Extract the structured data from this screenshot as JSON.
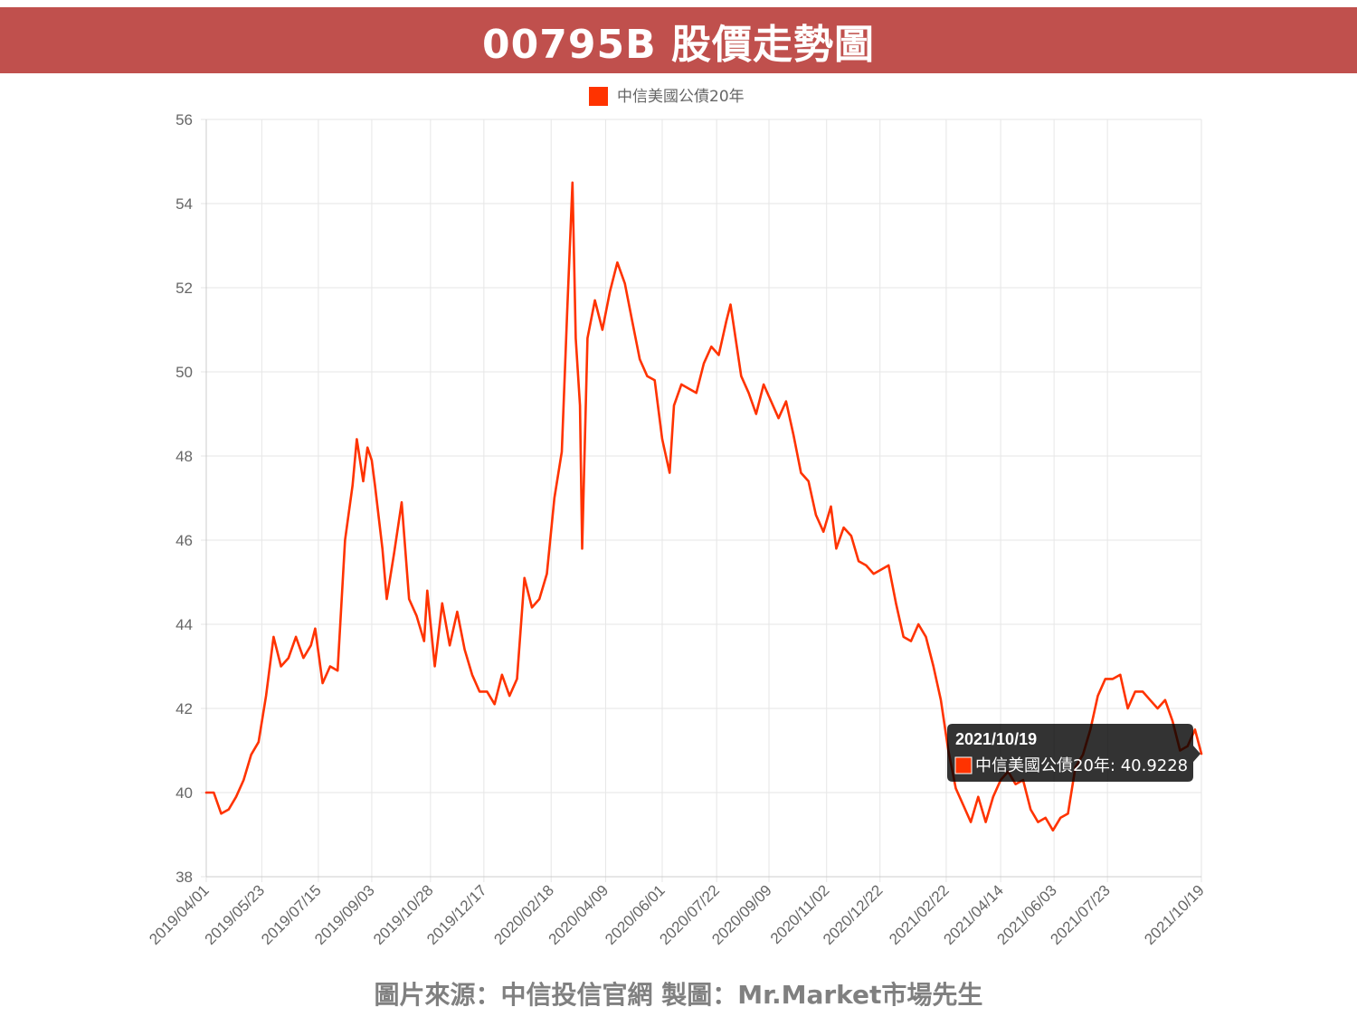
{
  "header": {
    "title": "00795B 股價走勢圖",
    "color": "#c0504d"
  },
  "footer": {
    "source": "圖片來源：中信投信官網  製圖：Mr.Market市場先生"
  },
  "chart_data": {
    "type": "line",
    "legend": {
      "label": "中信美國公債20年",
      "color": "#ff3300",
      "position": "top"
    },
    "x_tick_labels": [
      "2019/04/01",
      "2019/05/23",
      "2019/07/15",
      "2019/09/03",
      "2019/10/28",
      "2019/12/17",
      "2020/02/18",
      "2020/04/09",
      "2020/06/01",
      "2020/07/22",
      "2020/09/09",
      "2020/11/02",
      "2020/12/22",
      "2021/02/22",
      "2021/04/14",
      "2021/06/03",
      "2021/07/23",
      "2021/10/19"
    ],
    "y_ticks": [
      38,
      40,
      42,
      44,
      46,
      48,
      50,
      52,
      54,
      56
    ],
    "ylim": [
      38,
      56
    ],
    "xlim": [
      "2019/04/01",
      "2021/10/19"
    ],
    "grid": true,
    "series": [
      {
        "name": "中信美國公債20年",
        "color": "#ff3300",
        "points": [
          [
            "2019/04/01",
            40.0
          ],
          [
            "2019/04/08",
            40.0
          ],
          [
            "2019/04/15",
            39.5
          ],
          [
            "2019/04/22",
            39.6
          ],
          [
            "2019/04/29",
            39.9
          ],
          [
            "2019/05/06",
            40.3
          ],
          [
            "2019/05/13",
            40.9
          ],
          [
            "2019/05/20",
            41.2
          ],
          [
            "2019/05/27",
            42.3
          ],
          [
            "2019/06/03",
            43.7
          ],
          [
            "2019/06/10",
            43.0
          ],
          [
            "2019/06/17",
            43.2
          ],
          [
            "2019/06/24",
            43.7
          ],
          [
            "2019/07/01",
            43.2
          ],
          [
            "2019/07/08",
            43.5
          ],
          [
            "2019/07/12",
            43.9
          ],
          [
            "2019/07/19",
            42.6
          ],
          [
            "2019/07/26",
            43.0
          ],
          [
            "2019/08/02",
            42.9
          ],
          [
            "2019/08/09",
            46.0
          ],
          [
            "2019/08/16",
            47.3
          ],
          [
            "2019/08/20",
            48.4
          ],
          [
            "2019/08/26",
            47.4
          ],
          [
            "2019/08/30",
            48.2
          ],
          [
            "2019/09/03",
            47.9
          ],
          [
            "2019/09/06",
            47.3
          ],
          [
            "2019/09/13",
            45.8
          ],
          [
            "2019/09/17",
            44.6
          ],
          [
            "2019/09/24",
            45.7
          ],
          [
            "2019/10/01",
            46.9
          ],
          [
            "2019/10/08",
            44.6
          ],
          [
            "2019/10/15",
            44.2
          ],
          [
            "2019/10/22",
            43.6
          ],
          [
            "2019/10/25",
            44.8
          ],
          [
            "2019/11/01",
            43.0
          ],
          [
            "2019/11/08",
            44.5
          ],
          [
            "2019/11/15",
            43.5
          ],
          [
            "2019/11/22",
            44.3
          ],
          [
            "2019/11/29",
            43.4
          ],
          [
            "2019/12/06",
            42.8
          ],
          [
            "2019/12/13",
            42.4
          ],
          [
            "2019/12/20",
            42.4
          ],
          [
            "2019/12/27",
            42.1
          ],
          [
            "2020/01/03",
            42.8
          ],
          [
            "2020/01/10",
            42.3
          ],
          [
            "2020/01/17",
            42.7
          ],
          [
            "2020/01/24",
            45.1
          ],
          [
            "2020/01/31",
            44.4
          ],
          [
            "2020/02/07",
            44.6
          ],
          [
            "2020/02/14",
            45.2
          ],
          [
            "2020/02/21",
            47.0
          ],
          [
            "2020/02/28",
            48.1
          ],
          [
            "2020/03/04",
            51.4
          ],
          [
            "2020/03/09",
            54.5
          ],
          [
            "2020/03/12",
            50.8
          ],
          [
            "2020/03/16",
            49.2
          ],
          [
            "2020/03/18",
            45.8
          ],
          [
            "2020/03/23",
            50.8
          ],
          [
            "2020/03/30",
            51.7
          ],
          [
            "2020/04/06",
            51.0
          ],
          [
            "2020/04/13",
            51.9
          ],
          [
            "2020/04/20",
            52.6
          ],
          [
            "2020/04/27",
            52.1
          ],
          [
            "2020/05/04",
            51.2
          ],
          [
            "2020/05/11",
            50.3
          ],
          [
            "2020/05/18",
            49.9
          ],
          [
            "2020/05/25",
            49.8
          ],
          [
            "2020/06/01",
            48.4
          ],
          [
            "2020/06/08",
            47.6
          ],
          [
            "2020/06/12",
            49.2
          ],
          [
            "2020/06/19",
            49.7
          ],
          [
            "2020/06/26",
            49.6
          ],
          [
            "2020/07/03",
            49.5
          ],
          [
            "2020/07/10",
            50.2
          ],
          [
            "2020/07/17",
            50.6
          ],
          [
            "2020/07/24",
            50.4
          ],
          [
            "2020/07/31",
            51.2
          ],
          [
            "2020/08/04",
            51.6
          ],
          [
            "2020/08/07",
            51.1
          ],
          [
            "2020/08/14",
            49.9
          ],
          [
            "2020/08/21",
            49.5
          ],
          [
            "2020/08/28",
            49.0
          ],
          [
            "2020/09/04",
            49.7
          ],
          [
            "2020/09/11",
            49.3
          ],
          [
            "2020/09/18",
            48.9
          ],
          [
            "2020/09/25",
            49.3
          ],
          [
            "2020/10/02",
            48.5
          ],
          [
            "2020/10/09",
            47.6
          ],
          [
            "2020/10/16",
            47.4
          ],
          [
            "2020/10/23",
            46.6
          ],
          [
            "2020/10/30",
            46.2
          ],
          [
            "2020/11/06",
            46.8
          ],
          [
            "2020/11/11",
            45.8
          ],
          [
            "2020/11/18",
            46.3
          ],
          [
            "2020/11/25",
            46.1
          ],
          [
            "2020/12/02",
            45.5
          ],
          [
            "2020/12/09",
            45.4
          ],
          [
            "2020/12/16",
            45.2
          ],
          [
            "2020/12/23",
            45.3
          ],
          [
            "2020/12/30",
            45.4
          ],
          [
            "2021/01/06",
            44.5
          ],
          [
            "2021/01/13",
            43.7
          ],
          [
            "2021/01/20",
            43.6
          ],
          [
            "2021/01/27",
            44.0
          ],
          [
            "2021/02/03",
            43.7
          ],
          [
            "2021/02/10",
            43.0
          ],
          [
            "2021/02/17",
            42.2
          ],
          [
            "2021/02/24",
            41.0
          ],
          [
            "2021/03/03",
            40.1
          ],
          [
            "2021/03/10",
            39.7
          ],
          [
            "2021/03/17",
            39.3
          ],
          [
            "2021/03/24",
            39.9
          ],
          [
            "2021/03/31",
            39.3
          ],
          [
            "2021/04/07",
            39.9
          ],
          [
            "2021/04/14",
            40.3
          ],
          [
            "2021/04/21",
            40.5
          ],
          [
            "2021/04/28",
            40.2
          ],
          [
            "2021/05/05",
            40.3
          ],
          [
            "2021/05/12",
            39.6
          ],
          [
            "2021/05/19",
            39.3
          ],
          [
            "2021/05/26",
            39.4
          ],
          [
            "2021/06/02",
            39.1
          ],
          [
            "2021/06/09",
            39.4
          ],
          [
            "2021/06/16",
            39.5
          ],
          [
            "2021/06/23",
            40.6
          ],
          [
            "2021/06/30",
            40.9
          ],
          [
            "2021/07/07",
            41.5
          ],
          [
            "2021/07/14",
            42.3
          ],
          [
            "2021/07/21",
            42.7
          ],
          [
            "2021/07/28",
            42.7
          ],
          [
            "2021/08/04",
            42.8
          ],
          [
            "2021/08/11",
            42.0
          ],
          [
            "2021/08/18",
            42.4
          ],
          [
            "2021/08/25",
            42.4
          ],
          [
            "2021/09/01",
            42.2
          ],
          [
            "2021/09/08",
            42.0
          ],
          [
            "2021/09/15",
            42.2
          ],
          [
            "2021/09/22",
            41.7
          ],
          [
            "2021/09/29",
            41.0
          ],
          [
            "2021/10/06",
            41.1
          ],
          [
            "2021/10/13",
            41.5
          ],
          [
            "2021/10/19",
            40.9228
          ]
        ]
      }
    ],
    "tooltip": {
      "title": "2021/10/19",
      "label": "中信美國公債20年: 40.9228",
      "date": "2021/10/19",
      "value": 40.9228
    }
  }
}
